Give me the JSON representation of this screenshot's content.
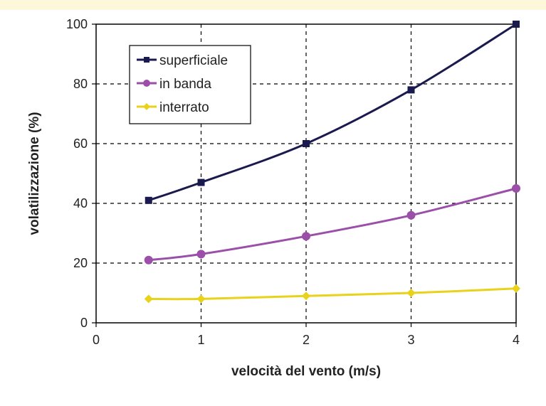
{
  "chart_data": {
    "type": "line",
    "title": "",
    "xlabel": "velocità del vento (m/s)",
    "ylabel": "volatilizzazione (%)",
    "xlim": [
      0,
      4
    ],
    "ylim": [
      0,
      100
    ],
    "xticks": [
      0,
      1,
      2,
      3,
      4
    ],
    "yticks": [
      0,
      20,
      40,
      60,
      80,
      100
    ],
    "grid": true,
    "legend_position": "top-left",
    "series": [
      {
        "name": "superficiale",
        "color": "#1a1a4e",
        "marker": "square",
        "x": [
          0.5,
          1,
          2,
          3,
          4
        ],
        "y": [
          41,
          47,
          60,
          78,
          100
        ]
      },
      {
        "name": "in banda",
        "color": "#9b4fa8",
        "marker": "circle",
        "x": [
          0.5,
          1,
          2,
          3,
          4
        ],
        "y": [
          21,
          23,
          29,
          36,
          45
        ]
      },
      {
        "name": "interrato",
        "color": "#e8d21a",
        "marker": "diamond",
        "x": [
          0.5,
          1,
          2,
          3,
          4
        ],
        "y": [
          8,
          8,
          9,
          10,
          11.5
        ]
      }
    ]
  }
}
